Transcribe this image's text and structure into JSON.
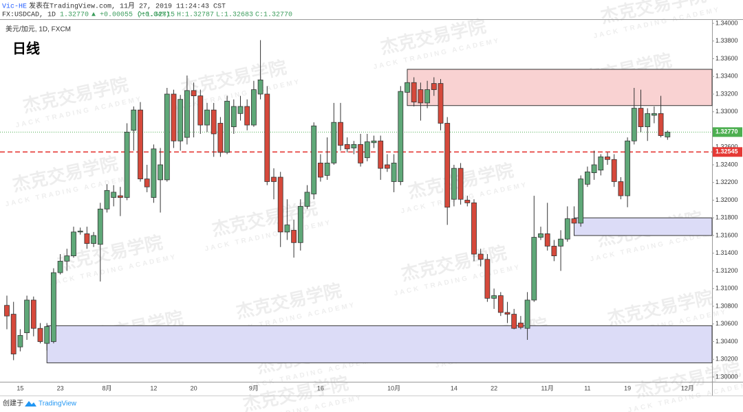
{
  "header": {
    "author": "Vic-HE",
    "published": "发表在TradingView.com, 11月 27, 2019 11:24:43 CST",
    "symbol": "FX:USDCAD, 1D",
    "price": "1.32770",
    "change": "▲ +0.00055 (+0.04%)",
    "open": "O:1.32715",
    "high": "H:1.32787",
    "low": "L:1.32683",
    "close": "C:1.32770"
  },
  "footer": {
    "created": "创建于",
    "brand": "TradingView"
  },
  "watermark": {
    "title": "杰克交易学院",
    "subtitle": "JACK TRADING ACADEMY"
  },
  "chart_data": {
    "type": "candlestick",
    "title": "日线",
    "instrument": "美元/加元, 1D, FXCM",
    "up_color": "#5fa878",
    "down_color": "#d6493b",
    "grid": false,
    "ylim": [
      1.3,
      1.34
    ],
    "yticks": [
      {
        "value": 1.3,
        "label": "1.30000"
      },
      {
        "value": 1.302,
        "label": "1.30200"
      },
      {
        "value": 1.304,
        "label": "1.30400"
      },
      {
        "value": 1.306,
        "label": "1.30600"
      },
      {
        "value": 1.308,
        "label": "1.30800"
      },
      {
        "value": 1.31,
        "label": "1.31000"
      },
      {
        "value": 1.312,
        "label": "1.31200"
      },
      {
        "value": 1.314,
        "label": "1.31400"
      },
      {
        "value": 1.316,
        "label": "1.31600"
      },
      {
        "value": 1.318,
        "label": "1.31800"
      },
      {
        "value": 1.32,
        "label": "1.32000"
      },
      {
        "value": 1.322,
        "label": "1.32200"
      },
      {
        "value": 1.324,
        "label": "1.32400"
      },
      {
        "value": 1.326,
        "label": "1.32600"
      },
      {
        "value": 1.33,
        "label": "1.33000"
      },
      {
        "value": 1.332,
        "label": "1.33200"
      },
      {
        "value": 1.334,
        "label": "1.33400"
      },
      {
        "value": 1.336,
        "label": "1.33600"
      },
      {
        "value": 1.338,
        "label": "1.33800"
      },
      {
        "value": 1.34,
        "label": "1.34000"
      }
    ],
    "categories": [
      null,
      null,
      "15",
      null,
      null,
      null,
      null,
      null,
      "23",
      null,
      null,
      null,
      null,
      null,
      null,
      "8月",
      null,
      null,
      null,
      null,
      null,
      null,
      "12",
      null,
      null,
      null,
      null,
      null,
      "20",
      null,
      null,
      null,
      null,
      null,
      null,
      null,
      null,
      "9月",
      null,
      null,
      null,
      null,
      null,
      null,
      null,
      null,
      null,
      "16",
      null,
      null,
      null,
      null,
      null,
      null,
      null,
      null,
      null,
      null,
      "10月",
      null,
      null,
      null,
      null,
      null,
      null,
      null,
      null,
      "14",
      null,
      null,
      null,
      null,
      null,
      "22",
      null,
      null,
      null,
      null,
      null,
      null,
      null,
      "11月",
      null,
      null,
      null,
      null,
      null,
      "11",
      null,
      null,
      null,
      null,
      null,
      "19",
      null,
      null,
      null,
      null,
      null,
      null,
      null,
      null,
      "12月"
    ],
    "open": [
      1.3081,
      1.3071,
      1.3034,
      1.305,
      1.3087,
      1.3055,
      1.3038,
      1.304,
      1.3118,
      1.3131,
      1.3137,
      1.3164,
      1.3162,
      1.3151,
      1.315,
      1.319,
      1.3203,
      1.3205,
      1.3203,
      1.3279,
      1.3302,
      1.3224,
      1.3203,
      1.3223,
      1.3223,
      1.332,
      1.3267,
      1.3271,
      1.3324,
      1.3318,
      1.3285,
      1.3302,
      1.3287,
      1.3254,
      1.3283,
      1.3298,
      1.3306,
      1.3285,
      1.332,
      1.332,
      1.3226,
      1.3226,
      1.3164,
      1.3166,
      1.3152,
      1.3193,
      1.3207,
      1.3242,
      1.3228,
      1.3242,
      1.3288,
      1.3263,
      1.3259,
      1.3263,
      1.3248,
      1.3265,
      1.3267,
      1.324,
      1.3221,
      1.3221,
      1.3322,
      1.3333,
      1.3325,
      1.331,
      1.3332,
      1.3332,
      1.3287,
      1.3201,
      1.3236,
      1.32,
      1.3197,
      1.3139,
      1.3133,
      1.3089,
      1.3092,
      1.3073,
      1.3071,
      1.3061,
      1.3055,
      1.3087,
      1.3158,
      1.3162,
      1.3148,
      1.3148,
      1.3156,
      1.3179,
      1.3174,
      1.3218,
      1.3231,
      1.3234,
      1.3249,
      1.3246,
      1.3221,
      1.3205,
      1.3267,
      1.3304,
      1.3283,
      1.3296,
      1.3298,
      1.32715,
      null,
      null,
      null
    ],
    "high": [
      1.3092,
      1.3085,
      1.3054,
      1.3092,
      1.3091,
      1.3061,
      1.3061,
      1.3123,
      1.3139,
      1.3145,
      1.317,
      1.3169,
      1.317,
      1.3164,
      1.3197,
      1.3218,
      1.3217,
      1.3215,
      1.3287,
      1.3306,
      1.3311,
      1.324,
      1.3263,
      1.3259,
      1.3327,
      1.3325,
      1.3319,
      1.3341,
      1.3333,
      1.3325,
      1.331,
      1.331,
      1.3294,
      1.3318,
      1.3314,
      1.3318,
      1.3314,
      1.3335,
      1.3381,
      1.3329,
      1.3236,
      1.3232,
      1.3201,
      1.3178,
      1.3201,
      1.3217,
      1.3288,
      1.3252,
      1.3271,
      1.331,
      1.331,
      1.3271,
      1.3267,
      1.3275,
      1.3275,
      1.3273,
      1.3273,
      1.3252,
      1.3252,
      1.3329,
      1.3342,
      1.3339,
      1.3333,
      1.3335,
      1.3339,
      1.3337,
      1.3294,
      1.324,
      1.3242,
      1.3205,
      1.3201,
      1.3145,
      1.3139,
      1.31,
      1.3096,
      1.3085,
      1.3077,
      1.3069,
      1.3096,
      1.3205,
      1.317,
      1.3197,
      1.3155,
      1.3166,
      1.3193,
      1.3193,
      1.3228,
      1.3238,
      1.3256,
      1.3252,
      1.3254,
      1.3252,
      1.3226,
      1.3271,
      1.3327,
      1.3325,
      1.3304,
      1.3306,
      1.3318,
      1.32787,
      null,
      null,
      null
    ],
    "low": [
      1.3054,
      1.3019,
      1.3029,
      1.3042,
      1.3046,
      1.3038,
      1.303,
      1.3038,
      1.3116,
      1.312,
      1.3135,
      1.3161,
      1.3145,
      1.3147,
      1.3108,
      1.3186,
      1.3193,
      1.3182,
      1.32,
      1.3256,
      1.3221,
      1.3209,
      1.3197,
      1.3186,
      1.3221,
      1.3259,
      1.3256,
      1.3263,
      1.3271,
      1.3275,
      1.3277,
      1.3249,
      1.3249,
      1.3252,
      1.3275,
      1.329,
      1.3279,
      1.3283,
      1.3314,
      1.3217,
      1.3201,
      1.3147,
      1.3155,
      1.3135,
      1.3143,
      1.319,
      1.3201,
      1.3221,
      1.3223,
      1.324,
      1.3256,
      1.3254,
      1.3252,
      1.3238,
      1.3244,
      1.3259,
      1.3223,
      1.3232,
      1.3209,
      1.3217,
      1.3318,
      1.3306,
      1.329,
      1.3304,
      1.3318,
      1.3279,
      1.3172,
      1.3193,
      1.3195,
      1.3193,
      1.3131,
      1.3125,
      1.3085,
      1.3077,
      1.3069,
      1.3061,
      1.3054,
      1.3054,
      1.3042,
      1.3085,
      1.3155,
      1.3143,
      1.3131,
      1.312,
      1.3153,
      1.317,
      1.317,
      1.3215,
      1.3223,
      1.3228,
      1.324,
      1.3215,
      1.3201,
      1.3192,
      1.3263,
      1.3277,
      1.3267,
      1.3287,
      1.3271,
      1.32683,
      null,
      null,
      null
    ],
    "close": [
      1.3069,
      1.3026,
      1.3047,
      1.3087,
      1.3055,
      1.304,
      1.3057,
      1.3118,
      1.3131,
      1.3137,
      1.3164,
      1.3165,
      1.3151,
      1.316,
      1.319,
      1.3211,
      1.3209,
      1.3203,
      1.3277,
      1.3302,
      1.3224,
      1.3215,
      1.3258,
      1.324,
      1.332,
      1.3267,
      1.3314,
      1.3324,
      1.3318,
      1.3285,
      1.3302,
      1.3275,
      1.3254,
      1.3312,
      1.3306,
      1.3306,
      1.3285,
      1.3325,
      1.3336,
      1.3221,
      1.3221,
      1.3164,
      1.3172,
      1.3152,
      1.3193,
      1.3209,
      1.3284,
      1.3226,
      1.3242,
      1.3288,
      1.3262,
      1.3258,
      1.3263,
      1.3242,
      1.3266,
      1.3267,
      1.3236,
      1.3236,
      1.3242,
      1.3323,
      1.3333,
      1.3311,
      1.331,
      1.3325,
      1.3325,
      1.3287,
      1.3192,
      1.3236,
      1.3201,
      1.3197,
      1.3139,
      1.3133,
      1.3089,
      1.3092,
      1.3073,
      1.3071,
      1.3055,
      1.3056,
      1.3087,
      1.3158,
      1.3162,
      1.3148,
      1.3137,
      1.3156,
      1.3179,
      1.3174,
      1.3224,
      1.3232,
      1.324,
      1.3249,
      1.3246,
      1.3221,
      1.3205,
      1.3267,
      1.3304,
      1.3283,
      1.3298,
      1.3298,
      1.3273,
      1.3277,
      null,
      null,
      null
    ],
    "last_price": {
      "value": 1.3277,
      "label": "1.32770",
      "color": "#4caf50"
    },
    "level_line": {
      "value": 1.32545,
      "color": "#e53935"
    },
    "zones": [
      {
        "start": 60,
        "top": 1.3348,
        "bottom": 1.3307,
        "color": "#f9d2d2"
      },
      {
        "start": 85,
        "top": 1.318,
        "bottom": 1.316,
        "color": "#dcdcf7"
      },
      {
        "start": 6,
        "top": 1.3058,
        "bottom": 1.3016,
        "color": "#dcdcf7"
      }
    ]
  }
}
